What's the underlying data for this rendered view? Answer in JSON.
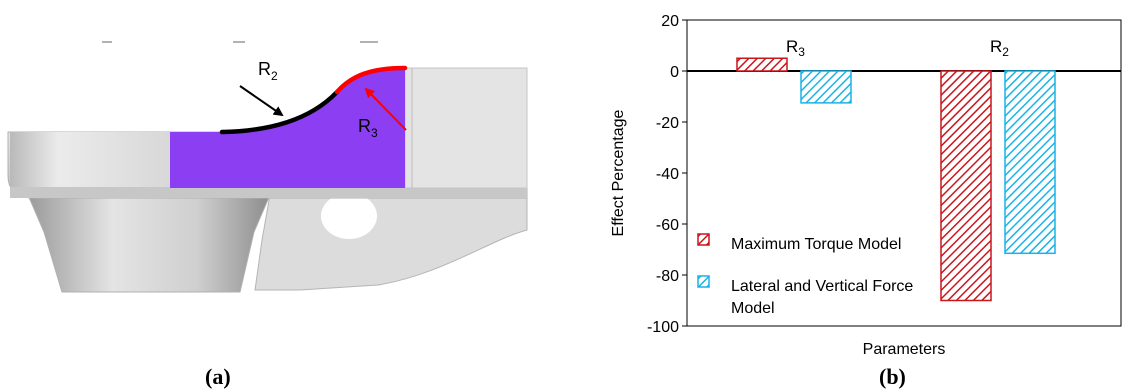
{
  "panel_a": {
    "label_r2": "R",
    "label_r2_sub": "2",
    "label_r3": "R",
    "label_r3_sub": "3",
    "caption": "(a)"
  },
  "panel_b": {
    "caption": "(b)"
  },
  "colors": {
    "part_gray": "#d2d2d2",
    "part_dark": "#8a8a8a",
    "highlight_region": "#8b3ef2",
    "r2_curve": "#000000",
    "r3_curve": "#ff0000",
    "series_red": "#c8161d",
    "series_blue": "#19b3e6"
  },
  "chart_data": {
    "type": "bar",
    "categories": [
      "R3",
      "R2"
    ],
    "category_label_text": [
      {
        "main": "R",
        "sub": "3"
      },
      {
        "main": "R",
        "sub": "2"
      }
    ],
    "series": [
      {
        "name": "Maximum Torque Model",
        "values": [
          5,
          -90
        ],
        "color": "#c8161d",
        "pattern": "diagonal-hatch"
      },
      {
        "name": "Lateral and Vertical Force Model",
        "values": [
          -12.5,
          -71.5
        ],
        "color": "#19b3e6",
        "pattern": "diagonal-hatch"
      }
    ],
    "legend_lines": [
      [
        "Maximum Torque Model"
      ],
      [
        "Lateral and Vertical Force",
        "Model"
      ]
    ],
    "title": "",
    "xlabel": "Parameters",
    "ylabel": "Effect Percentage",
    "ylim": [
      -100,
      20
    ],
    "yticks": [
      20,
      0,
      -20,
      -40,
      -60,
      -80,
      -100
    ],
    "grid": false,
    "legend_position": "bottom-left"
  }
}
